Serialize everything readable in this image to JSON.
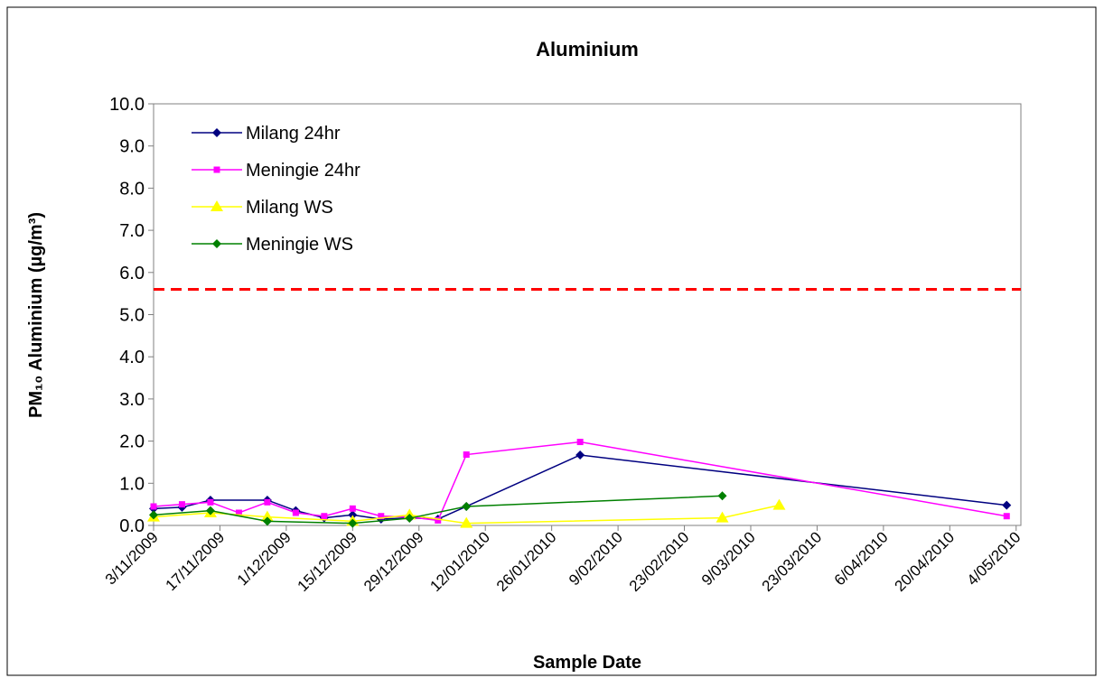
{
  "chart_data": {
    "type": "line",
    "title": "Aluminium",
    "xlabel": "Sample Date",
    "ylabel": "PM₁₀ Aluminium (µg/m³)",
    "ylim": [
      0,
      10
    ],
    "yticks": [
      {
        "value": 0,
        "label": "0.0"
      },
      {
        "value": 1,
        "label": "1.0"
      },
      {
        "value": 2,
        "label": "2.0"
      },
      {
        "value": 3,
        "label": "3.0"
      },
      {
        "value": 4,
        "label": "4.0"
      },
      {
        "value": 5,
        "label": "5.0"
      },
      {
        "value": 6,
        "label": "6.0"
      },
      {
        "value": 7,
        "label": "7.0"
      },
      {
        "value": 8,
        "label": "8.0"
      },
      {
        "value": 9,
        "label": "9.0"
      },
      {
        "value": 10,
        "label": "10.0"
      }
    ],
    "xlim": [
      "2009-11-03",
      "2010-05-05"
    ],
    "xticks": [
      {
        "value": "2009-11-03",
        "label": "3/11/2009"
      },
      {
        "value": "2009-11-17",
        "label": "17/11/2009"
      },
      {
        "value": "2009-12-01",
        "label": "1/12/2009"
      },
      {
        "value": "2009-12-15",
        "label": "15/12/2009"
      },
      {
        "value": "2009-12-29",
        "label": "29/12/2009"
      },
      {
        "value": "2010-01-12",
        "label": "12/01/2010"
      },
      {
        "value": "2010-01-26",
        "label": "26/01/2010"
      },
      {
        "value": "2010-02-09",
        "label": "9/02/2010"
      },
      {
        "value": "2010-02-23",
        "label": "23/02/2010"
      },
      {
        "value": "2010-03-09",
        "label": "9/03/2010"
      },
      {
        "value": "2010-03-23",
        "label": "23/03/2010"
      },
      {
        "value": "2010-04-06",
        "label": "6/04/2010"
      },
      {
        "value": "2010-04-20",
        "label": "20/04/2010"
      },
      {
        "value": "2010-05-04",
        "label": "4/05/2010"
      }
    ],
    "legend": "upper left",
    "hlines": [
      {
        "value": 5.6,
        "color": "#ff0000",
        "style": "dashed"
      }
    ],
    "series": [
      {
        "name": "Milang 24hr",
        "color": "#000080",
        "marker": "diamond",
        "x": [
          "2009-11-03",
          "2009-11-09",
          "2009-11-15",
          "2009-11-27",
          "2009-12-03",
          "2009-12-09",
          "2009-12-15",
          "2009-12-21",
          "2009-12-27",
          "2010-01-02",
          "2010-01-08",
          "2010-02-01",
          "2010-05-02"
        ],
        "values": [
          0.4,
          0.43,
          0.6,
          0.6,
          0.35,
          0.18,
          0.25,
          0.15,
          0.18,
          0.15,
          0.45,
          1.67,
          0.48
        ]
      },
      {
        "name": "Meningie 24hr",
        "color": "#ff00ff",
        "marker": "square",
        "x": [
          "2009-11-03",
          "2009-11-09",
          "2009-11-15",
          "2009-11-21",
          "2009-11-27",
          "2009-12-03",
          "2009-12-09",
          "2009-12-15",
          "2009-12-21",
          "2009-12-27",
          "2010-01-02",
          "2010-01-08",
          "2010-02-01",
          "2010-05-02"
        ],
        "values": [
          0.45,
          0.5,
          0.55,
          0.3,
          0.55,
          0.3,
          0.22,
          0.4,
          0.22,
          0.2,
          0.12,
          1.68,
          1.98,
          0.22
        ]
      },
      {
        "name": "Milang WS",
        "color": "#ffff00",
        "marker": "triangle",
        "x": [
          "2009-11-03",
          "2009-11-15",
          "2009-11-27",
          "2009-12-15",
          "2009-12-27",
          "2010-01-08",
          "2010-03-03",
          "2010-03-15"
        ],
        "values": [
          0.2,
          0.3,
          0.2,
          0.1,
          0.25,
          0.05,
          0.18,
          0.48
        ]
      },
      {
        "name": "Meningie WS",
        "color": "#008000",
        "marker": "diamond",
        "x": [
          "2009-11-03",
          "2009-11-15",
          "2009-11-27",
          "2009-12-15",
          "2009-12-27",
          "2010-01-08",
          "2010-03-03"
        ],
        "values": [
          0.25,
          0.35,
          0.1,
          0.05,
          0.17,
          0.45,
          0.7
        ]
      }
    ]
  }
}
